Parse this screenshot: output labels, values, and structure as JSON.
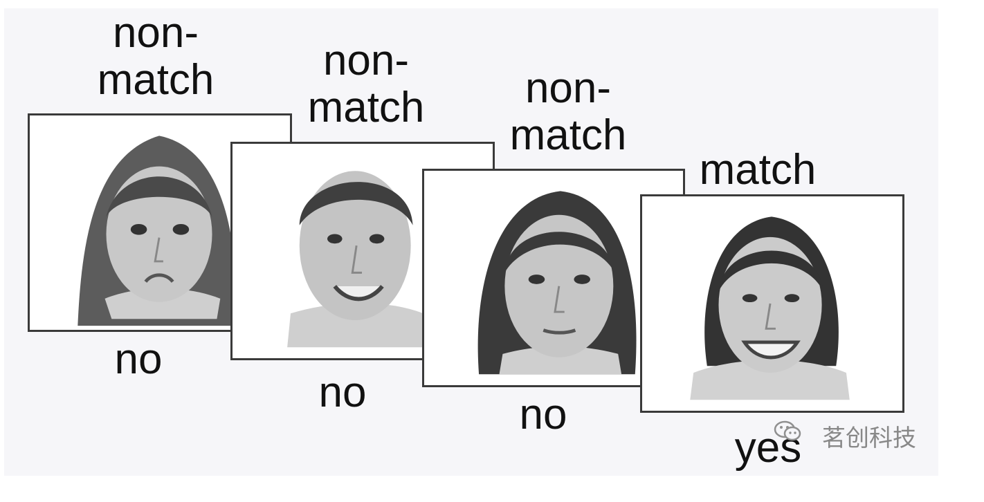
{
  "frames": [
    {
      "id": "1",
      "top_label": "non-\nmatch",
      "bottom_label": "no"
    },
    {
      "id": "2",
      "top_label": "non-\nmatch",
      "bottom_label": "no"
    },
    {
      "id": "3",
      "top_label": "non-\nmatch",
      "bottom_label": "no"
    },
    {
      "id": "4",
      "top_label": "match",
      "bottom_label": "yes"
    }
  ],
  "watermark": {
    "text": "茗创科技",
    "icon": "wechat-icon"
  },
  "colors": {
    "frame_border": "#3a3a3a",
    "background": "#f6f6f9",
    "text": "#111111",
    "watermark": "#888888"
  }
}
